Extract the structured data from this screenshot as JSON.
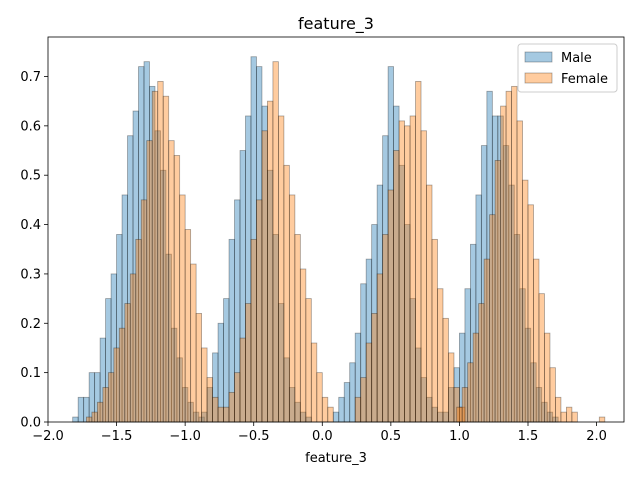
{
  "chart_data": {
    "type": "bar",
    "title": "feature_3",
    "xlabel": "feature_3",
    "ylabel": "",
    "xlim": [
      -2.0,
      2.2
    ],
    "ylim": [
      0,
      0.78
    ],
    "bin_width": 0.04,
    "x_ticks": [
      -2.0,
      -1.5,
      -1.0,
      -0.5,
      0.0,
      0.5,
      1.0,
      1.5,
      2.0
    ],
    "x_tick_labels": [
      "−2.0",
      "−1.5",
      "−1.0",
      "−0.5",
      "0.0",
      "0.5",
      "1.0",
      "1.5",
      "2.0"
    ],
    "y_ticks": [
      0.0,
      0.1,
      0.2,
      0.3,
      0.4,
      0.5,
      0.6,
      0.7
    ],
    "y_tick_labels": [
      "0.0",
      "0.1",
      "0.2",
      "0.3",
      "0.4",
      "0.5",
      "0.6",
      "0.7"
    ],
    "legend_position": "top-right",
    "series": [
      {
        "name": "Male",
        "color": "#1f77b4",
        "bins": [
          [
            -1.82,
            0.01
          ],
          [
            -1.78,
            0.05
          ],
          [
            -1.74,
            0.05
          ],
          [
            -1.7,
            0.1
          ],
          [
            -1.66,
            0.1
          ],
          [
            -1.62,
            0.17
          ],
          [
            -1.58,
            0.25
          ],
          [
            -1.54,
            0.3
          ],
          [
            -1.5,
            0.38
          ],
          [
            -1.46,
            0.46
          ],
          [
            -1.42,
            0.58
          ],
          [
            -1.38,
            0.63
          ],
          [
            -1.34,
            0.72
          ],
          [
            -1.3,
            0.73
          ],
          [
            -1.26,
            0.68
          ],
          [
            -1.22,
            0.59
          ],
          [
            -1.18,
            0.51
          ],
          [
            -1.14,
            0.34
          ],
          [
            -1.1,
            0.19
          ],
          [
            -1.06,
            0.13
          ],
          [
            -1.02,
            0.07
          ],
          [
            -0.98,
            0.04
          ],
          [
            -0.94,
            0.02
          ],
          [
            -0.9,
            0.01
          ],
          [
            -0.88,
            0.02
          ],
          [
            -0.84,
            0.07
          ],
          [
            -0.8,
            0.14
          ],
          [
            -0.76,
            0.2
          ],
          [
            -0.72,
            0.25
          ],
          [
            -0.68,
            0.37
          ],
          [
            -0.64,
            0.45
          ],
          [
            -0.6,
            0.55
          ],
          [
            -0.56,
            0.62
          ],
          [
            -0.52,
            0.74
          ],
          [
            -0.48,
            0.72
          ],
          [
            -0.44,
            0.64
          ],
          [
            -0.4,
            0.51
          ],
          [
            -0.36,
            0.38
          ],
          [
            -0.32,
            0.24
          ],
          [
            -0.28,
            0.13
          ],
          [
            -0.24,
            0.07
          ],
          [
            -0.2,
            0.04
          ],
          [
            -0.16,
            0.02
          ],
          [
            -0.12,
            0.01
          ],
          [
            0.08,
            0.02
          ],
          [
            0.12,
            0.05
          ],
          [
            0.16,
            0.08
          ],
          [
            0.2,
            0.12
          ],
          [
            0.24,
            0.18
          ],
          [
            0.28,
            0.28
          ],
          [
            0.32,
            0.33
          ],
          [
            0.36,
            0.4
          ],
          [
            0.4,
            0.48
          ],
          [
            0.44,
            0.58
          ],
          [
            0.48,
            0.72
          ],
          [
            0.52,
            0.64
          ],
          [
            0.56,
            0.52
          ],
          [
            0.6,
            0.4
          ],
          [
            0.64,
            0.25
          ],
          [
            0.68,
            0.15
          ],
          [
            0.72,
            0.09
          ],
          [
            0.76,
            0.05
          ],
          [
            0.8,
            0.03
          ],
          [
            0.84,
            0.02
          ],
          [
            0.88,
            0.02
          ],
          [
            0.92,
            0.07
          ],
          [
            0.96,
            0.11
          ],
          [
            1.0,
            0.18
          ],
          [
            1.04,
            0.27
          ],
          [
            1.08,
            0.36
          ],
          [
            1.12,
            0.46
          ],
          [
            1.16,
            0.56
          ],
          [
            1.2,
            0.67
          ],
          [
            1.24,
            0.62
          ],
          [
            1.28,
            0.62
          ],
          [
            1.32,
            0.56
          ],
          [
            1.36,
            0.48
          ],
          [
            1.4,
            0.38
          ],
          [
            1.44,
            0.27
          ],
          [
            1.48,
            0.19
          ],
          [
            1.52,
            0.12
          ],
          [
            1.56,
            0.07
          ],
          [
            1.6,
            0.04
          ],
          [
            1.64,
            0.02
          ],
          [
            1.68,
            0.01
          ]
        ]
      },
      {
        "name": "Female",
        "color": "#ff7f0e",
        "bins": [
          [
            -1.72,
            0.01
          ],
          [
            -1.68,
            0.02
          ],
          [
            -1.64,
            0.04
          ],
          [
            -1.6,
            0.07
          ],
          [
            -1.56,
            0.1
          ],
          [
            -1.52,
            0.15
          ],
          [
            -1.48,
            0.19
          ],
          [
            -1.44,
            0.24
          ],
          [
            -1.4,
            0.3
          ],
          [
            -1.36,
            0.37
          ],
          [
            -1.32,
            0.45
          ],
          [
            -1.28,
            0.57
          ],
          [
            -1.24,
            0.67
          ],
          [
            -1.2,
            0.69
          ],
          [
            -1.16,
            0.66
          ],
          [
            -1.12,
            0.57
          ],
          [
            -1.08,
            0.54
          ],
          [
            -1.04,
            0.46
          ],
          [
            -1.0,
            0.39
          ],
          [
            -0.96,
            0.32
          ],
          [
            -0.92,
            0.22
          ],
          [
            -0.88,
            0.15
          ],
          [
            -0.84,
            0.09
          ],
          [
            -0.8,
            0.05
          ],
          [
            -0.76,
            0.03
          ],
          [
            -0.72,
            0.03
          ],
          [
            -0.68,
            0.06
          ],
          [
            -0.64,
            0.1
          ],
          [
            -0.6,
            0.17
          ],
          [
            -0.56,
            0.24
          ],
          [
            -0.52,
            0.37
          ],
          [
            -0.48,
            0.45
          ],
          [
            -0.44,
            0.59
          ],
          [
            -0.4,
            0.65
          ],
          [
            -0.36,
            0.73
          ],
          [
            -0.32,
            0.62
          ],
          [
            -0.28,
            0.52
          ],
          [
            -0.24,
            0.46
          ],
          [
            -0.2,
            0.38
          ],
          [
            -0.16,
            0.31
          ],
          [
            -0.12,
            0.25
          ],
          [
            -0.08,
            0.16
          ],
          [
            -0.04,
            0.1
          ],
          [
            0.0,
            0.05
          ],
          [
            0.04,
            0.03
          ],
          [
            0.24,
            0.05
          ],
          [
            0.28,
            0.09
          ],
          [
            0.32,
            0.16
          ],
          [
            0.36,
            0.22
          ],
          [
            0.4,
            0.3
          ],
          [
            0.44,
            0.38
          ],
          [
            0.48,
            0.47
          ],
          [
            0.52,
            0.55
          ],
          [
            0.56,
            0.61
          ],
          [
            0.6,
            0.6
          ],
          [
            0.64,
            0.62
          ],
          [
            0.68,
            0.69
          ],
          [
            0.72,
            0.59
          ],
          [
            0.76,
            0.48
          ],
          [
            0.8,
            0.37
          ],
          [
            0.84,
            0.27
          ],
          [
            0.88,
            0.21
          ],
          [
            0.92,
            0.14
          ],
          [
            0.96,
            0.07
          ],
          [
            1.0,
            0.03
          ],
          [
            0.98,
            0.03
          ],
          [
            1.02,
            0.07
          ],
          [
            1.06,
            0.12
          ],
          [
            1.1,
            0.18
          ],
          [
            1.14,
            0.24
          ],
          [
            1.18,
            0.33
          ],
          [
            1.22,
            0.42
          ],
          [
            1.26,
            0.53
          ],
          [
            1.3,
            0.64
          ],
          [
            1.34,
            0.67
          ],
          [
            1.38,
            0.68
          ],
          [
            1.42,
            0.61
          ],
          [
            1.46,
            0.49
          ],
          [
            1.5,
            0.44
          ],
          [
            1.54,
            0.33
          ],
          [
            1.58,
            0.26
          ],
          [
            1.62,
            0.18
          ],
          [
            1.66,
            0.11
          ],
          [
            1.7,
            0.05
          ],
          [
            1.74,
            0.02
          ],
          [
            1.78,
            0.03
          ],
          [
            1.82,
            0.02
          ],
          [
            2.02,
            0.01
          ]
        ]
      }
    ]
  }
}
